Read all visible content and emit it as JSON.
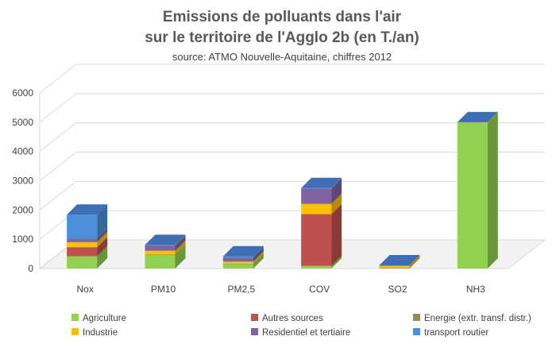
{
  "chart_data": {
    "type": "bar",
    "stacked": true,
    "three_d": true,
    "title": "Emissions de polluants dans l'air",
    "title_line2": "sur le territoire de l'Agglo 2b  (en T./an)",
    "subtitle": "source: ATMO Nouvelle-Aquitaine, chiffres 2012",
    "categories": [
      "Nox",
      "PM10",
      "PM2,5",
      "COV",
      "SO2",
      "NH3"
    ],
    "ylim": [
      0,
      6000
    ],
    "yticks": [
      "0",
      "1000",
      "2000",
      "3000",
      "4000",
      "5000",
      "6000"
    ],
    "series": [
      {
        "name": "Agriculture",
        "color": "#92d050",
        "values": [
          420,
          470,
          160,
          90,
          0,
          4970
        ]
      },
      {
        "name": "Autres sources",
        "color": "#c0504d",
        "values": [
          300,
          0,
          0,
          1760,
          0,
          0
        ]
      },
      {
        "name": "Energie (extr. transf. distr.)",
        "color": "#948a54",
        "values": [
          10,
          5,
          5,
          10,
          20,
          0
        ]
      },
      {
        "name": "Industrie",
        "color": "#ffc000",
        "values": [
          170,
          130,
          70,
          350,
          70,
          20
        ]
      },
      {
        "name": "Residentiel et tertiaire",
        "color": "#8064a2",
        "values": [
          120,
          180,
          130,
          520,
          15,
          0
        ]
      },
      {
        "name": "transport routier",
        "color": "#4a8fd9",
        "values": [
          820,
          20,
          50,
          20,
          5,
          10
        ]
      }
    ],
    "legend_position": "bottom",
    "grid": true
  }
}
